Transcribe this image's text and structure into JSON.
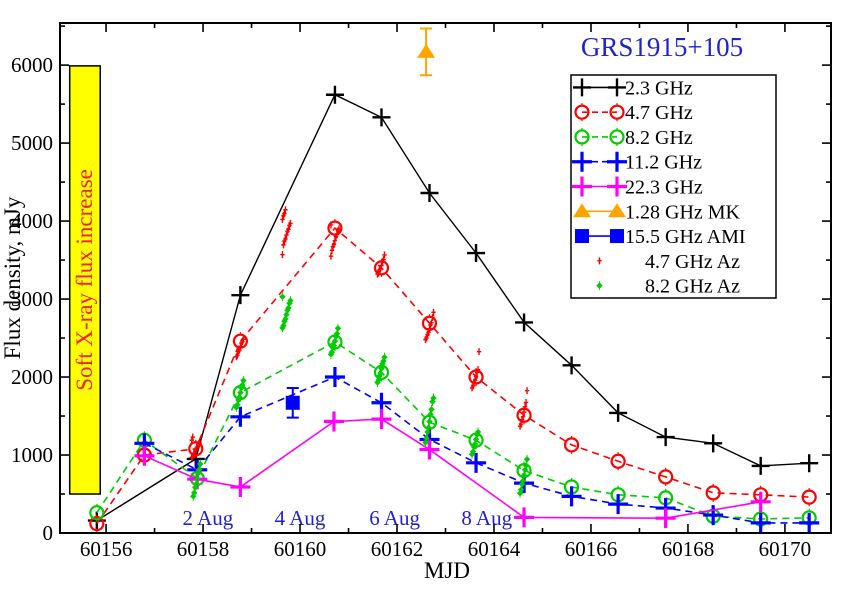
{
  "title": "GRS1915+105",
  "annotation": {
    "label": "Soft X-ray  flux increase",
    "box_fill": "#ffff00",
    "box_border": "#000000",
    "text_color": "#ee2233",
    "mjd_range": [
      60155.25,
      60155.88
    ],
    "flux_range": [
      500,
      5990
    ]
  },
  "colors": {
    "frame": "#000000",
    "title_blue": "#2222cc",
    "date_label_blue": "#2222cc",
    "background": "#ffffff"
  },
  "chart_data": {
    "type": "line",
    "title": "GRS1915+105",
    "xlabel": "MJD",
    "ylabel": "Flux density, mJy",
    "xlim": [
      60155.05,
      60170.95
    ],
    "ylim": [
      0,
      6540
    ],
    "x_major_ticks": [
      60156,
      60158,
      60160,
      60162,
      60164,
      60166,
      60168,
      60170
    ],
    "x_minor_ticks": [
      60157,
      60159,
      60161,
      60163,
      60165,
      60167,
      60169
    ],
    "y_major_ticks": [
      0,
      1000,
      2000,
      3000,
      4000,
      5000,
      6000
    ],
    "y_minor_ticks": [
      500,
      1500,
      2500,
      3500,
      4500,
      5500,
      6500
    ],
    "grid": false,
    "legend_position": "top-right",
    "date_labels": [
      {
        "label": "2 Aug",
        "mjd": 60158.1
      },
      {
        "label": "4 Aug",
        "mjd": 60160.0
      },
      {
        "label": "6 Aug",
        "mjd": 60161.95
      },
      {
        "label": "8 Aug",
        "mjd": 60163.85
      }
    ],
    "series": [
      {
        "name": "2.3 GHz",
        "color": "#000000",
        "marker": "plus",
        "line": "solid",
        "points": [
          [
            60155.81,
            160
          ],
          [
            60157.85,
            950
          ],
          [
            60158.77,
            3050
          ],
          [
            60160.72,
            5620
          ],
          [
            60161.68,
            5330
          ],
          [
            60162.67,
            4360
          ],
          [
            60163.63,
            3590
          ],
          [
            60164.62,
            2700
          ],
          [
            60165.6,
            2150
          ],
          [
            60166.56,
            1540
          ],
          [
            60167.54,
            1230
          ],
          [
            60168.52,
            1150
          ],
          [
            60169.5,
            860
          ],
          [
            60170.5,
            895
          ]
        ]
      },
      {
        "name": "4.7 GHz",
        "color": "#ff0000",
        "marker": "circle",
        "line": "dashed",
        "points": [
          [
            60155.81,
            120
          ],
          [
            60156.79,
            1000
          ],
          [
            60157.85,
            1080
          ],
          [
            60158.77,
            2460
          ],
          [
            60160.72,
            3910
          ],
          [
            60161.68,
            3400
          ],
          [
            60162.67,
            2690
          ],
          [
            60163.63,
            2000
          ],
          [
            60164.62,
            1510
          ],
          [
            60165.6,
            1130
          ],
          [
            60166.56,
            920
          ],
          [
            60167.54,
            720
          ],
          [
            60168.52,
            515
          ],
          [
            60169.5,
            490
          ],
          [
            60170.5,
            460
          ]
        ]
      },
      {
        "name": "8.2 GHz",
        "color": "#00cc00",
        "marker": "circle",
        "line": "dashed",
        "points": [
          [
            60155.81,
            260
          ],
          [
            60156.79,
            1190
          ],
          [
            60157.88,
            700
          ],
          [
            60158.77,
            1800
          ],
          [
            60160.72,
            2450
          ],
          [
            60161.68,
            2060
          ],
          [
            60162.67,
            1420
          ],
          [
            60163.63,
            1190
          ],
          [
            60164.62,
            800
          ],
          [
            60165.6,
            590
          ],
          [
            60166.56,
            490
          ],
          [
            60167.54,
            450
          ],
          [
            60168.52,
            215
          ],
          [
            60169.5,
            180
          ],
          [
            60170.5,
            195
          ]
        ]
      },
      {
        "name": "11.2 GHz",
        "color": "#0000ff",
        "marker": "plus",
        "line": "dashed",
        "points": [
          [
            60156.79,
            1150
          ],
          [
            60157.88,
            810
          ],
          [
            60158.77,
            1490
          ],
          [
            60160.72,
            2000
          ],
          [
            60161.68,
            1670
          ],
          [
            60162.67,
            1200
          ],
          [
            60163.63,
            900
          ],
          [
            60164.62,
            640
          ],
          [
            60165.6,
            470
          ],
          [
            60166.56,
            370
          ],
          [
            60167.54,
            320
          ],
          [
            60168.52,
            230
          ],
          [
            60169.5,
            130
          ],
          [
            60170.5,
            130
          ]
        ]
      },
      {
        "name": "22.3 GHz",
        "color": "#ff00ff",
        "marker": "plus",
        "line": "solid",
        "points": [
          [
            60156.79,
            990
          ],
          [
            60157.88,
            690
          ],
          [
            60158.77,
            590
          ],
          [
            60160.7,
            1430
          ],
          [
            60161.68,
            1460
          ],
          [
            60162.67,
            1070
          ],
          [
            60164.62,
            200
          ],
          [
            60167.54,
            190
          ],
          [
            60169.5,
            400
          ]
        ]
      },
      {
        "name": "1.28 GHz MK",
        "color": "#ffa500",
        "marker": "triangle",
        "line": "none",
        "yerr": 300,
        "points": [
          [
            60162.6,
            6170
          ]
        ]
      },
      {
        "name": "15.5 GHz AMI",
        "color": "#0000ff",
        "marker": "square",
        "line": "none",
        "yerr": 190,
        "points": [
          [
            60159.85,
            1670
          ]
        ]
      },
      {
        "name": "4.7 GHz Az",
        "color": "#ff0000",
        "marker": "tiny-plus",
        "line": "none",
        "clusters": [
          {
            "mjd": 60157.85,
            "values": [
              960,
              985,
              1010,
              1040,
              1065,
              1090,
              1115,
              1140,
              1165,
              1190,
              1220
            ]
          },
          {
            "mjd": 60158.77,
            "values": [
              2250,
              2285,
              2320,
              2355,
              2390,
              2425,
              2460,
              2480
            ]
          },
          {
            "mjd": 60159.72,
            "values": [
              3560,
              3700,
              3740,
              3780,
              3820,
              3860,
              3900,
              3940,
              3980,
              4020,
              4060,
              4100,
              4140
            ]
          },
          {
            "mjd": 60160.72,
            "values": [
              3540,
              3630,
              3670,
              3710,
              3750,
              3790,
              3830,
              3870,
              3910,
              3950
            ]
          },
          {
            "mjd": 60161.68,
            "values": [
              3310,
              3340,
              3370,
              3400,
              3430,
              3470,
              3510,
              3560
            ]
          },
          {
            "mjd": 60162.67,
            "values": [
              2470,
              2505,
              2540,
              2580,
              2620,
              2660,
              2700,
              2760,
              2840
            ]
          },
          {
            "mjd": 60163.63,
            "values": [
              1850,
              1890,
              1930,
              1970,
              2010,
              2050,
              2100,
              2320
            ]
          },
          {
            "mjd": 60164.62,
            "values": [
              1360,
              1400,
              1450,
              1500,
              1550,
              1610,
              1680,
              1820
            ]
          }
        ]
      },
      {
        "name": "8.2 GHz Az",
        "color": "#00cc00",
        "marker": "diamond",
        "line": "none",
        "clusters": [
          {
            "mjd": 60157.88,
            "values": [
              460,
              520,
              580,
              640,
              700,
              760,
              820,
              880
            ]
          },
          {
            "mjd": 60158.77,
            "values": [
              1600,
              1650,
              1700,
              1750,
              1800,
              1850,
              1900,
              1950
            ]
          },
          {
            "mjd": 60159.72,
            "values": [
              2620,
              2665,
              2710,
              2755,
              2800,
              2845,
              2890,
              2940,
              2990,
              3030
            ]
          },
          {
            "mjd": 60160.72,
            "values": [
              2280,
              2325,
              2370,
              2415,
              2460,
              2510,
              2560,
              2620
            ]
          },
          {
            "mjd": 60161.68,
            "values": [
              1920,
              1965,
              2010,
              2060,
              2110,
              2160,
              2210,
              2250
            ]
          },
          {
            "mjd": 60162.67,
            "values": [
              1150,
              1220,
              1290,
              1360,
              1430,
              1510,
              1590,
              1680,
              1740
            ]
          },
          {
            "mjd": 60163.63,
            "values": [
              1000,
              1050,
              1100,
              1150,
              1200,
              1250,
              1300
            ]
          },
          {
            "mjd": 60164.62,
            "values": [
              500,
              560,
              620,
              680,
              740,
              800,
              870,
              940
            ]
          }
        ]
      }
    ]
  }
}
